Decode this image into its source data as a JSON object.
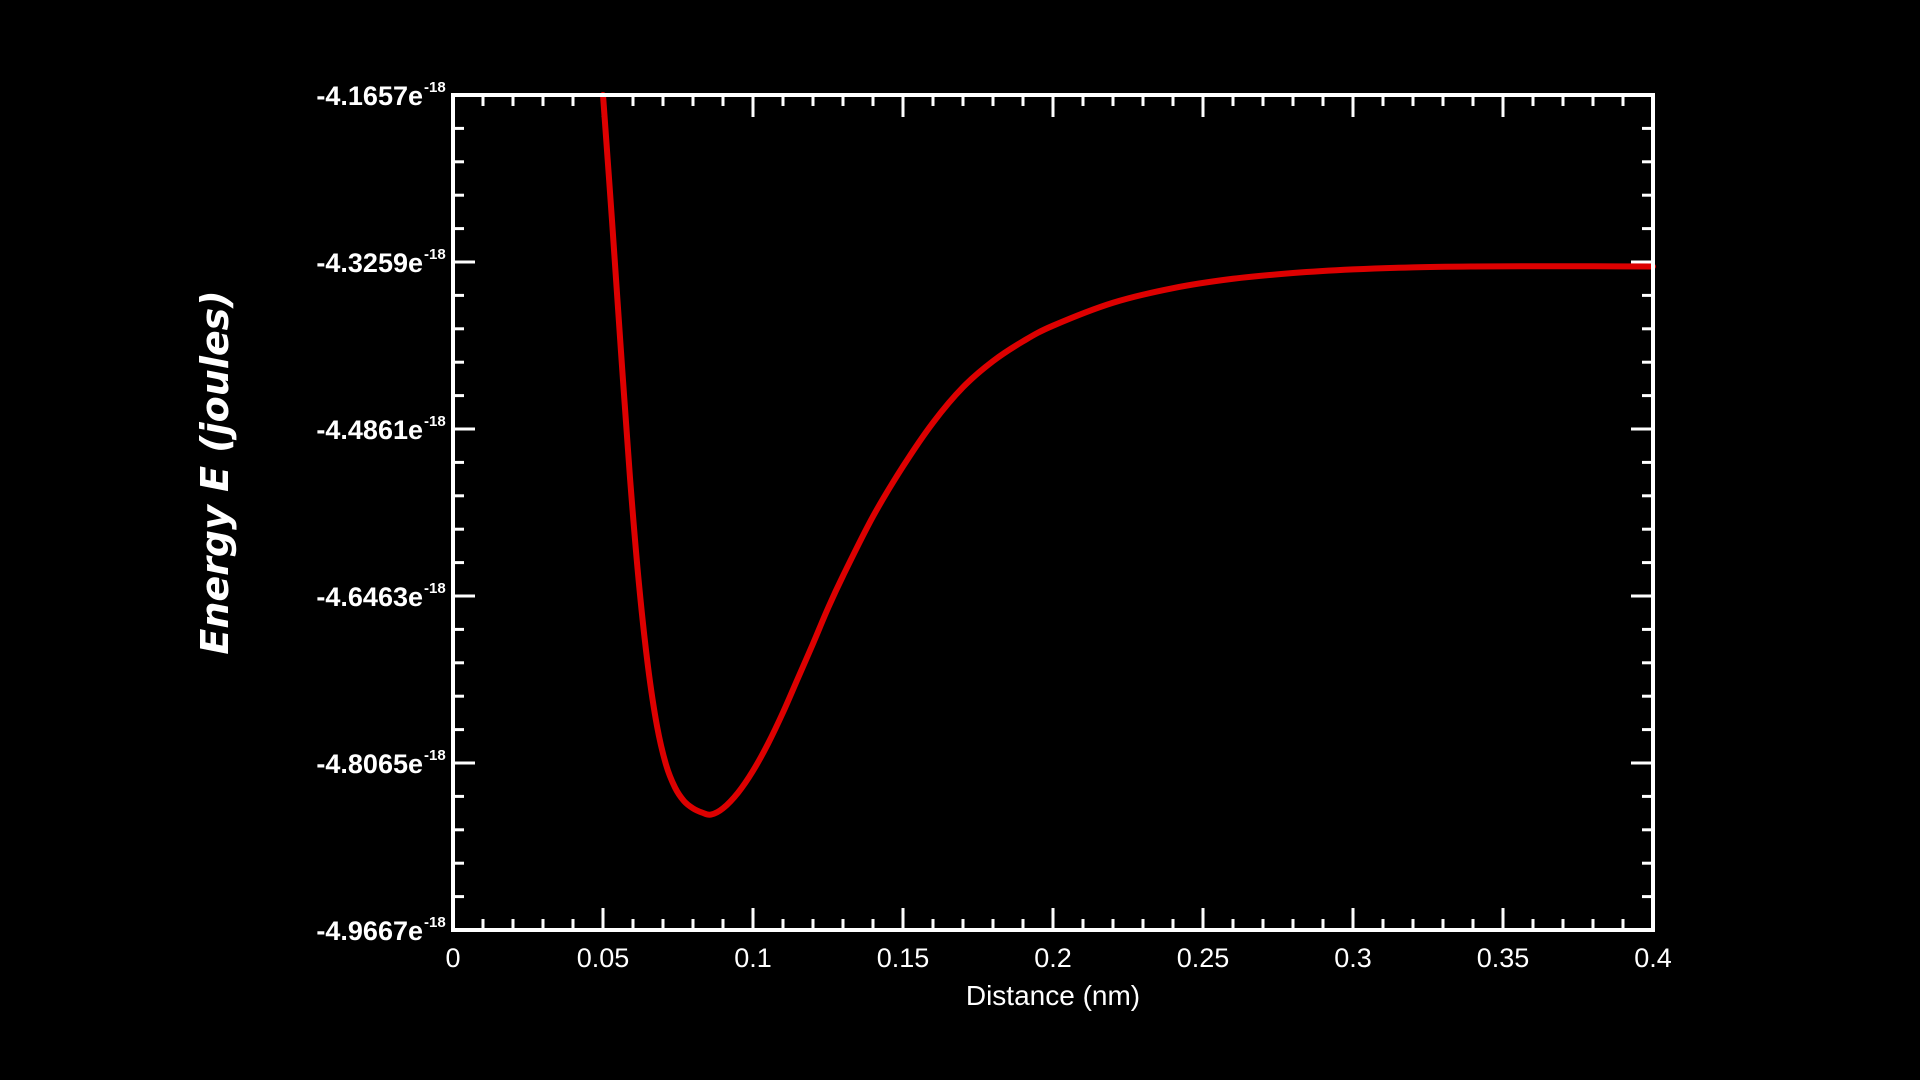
{
  "colors": {
    "background": "#000000",
    "axis": "#ffffff",
    "curve": "#dd0000"
  },
  "chart_data": {
    "type": "line",
    "title": "",
    "xlabel": "Distance (nm)",
    "ylabel": "Energy E (joules)",
    "xlim": [
      0,
      0.4
    ],
    "ylim": [
      -4.9667e-18,
      -4.1657e-18
    ],
    "grid": false,
    "legend": "none",
    "x_ticks": [
      0,
      0.05,
      0.1,
      0.15,
      0.2,
      0.25,
      0.3,
      0.35,
      0.4
    ],
    "x_tick_labels": [
      "0",
      "0.05",
      "0.1",
      "0.15",
      "0.2",
      "0.25",
      "0.3",
      "0.35",
      "0.4"
    ],
    "y_ticks": [
      -4.1657e-18,
      -4.3259e-18,
      -4.4861e-18,
      -4.6463e-18,
      -4.8065e-18,
      -4.9667e-18
    ],
    "y_tick_mantissas": [
      "-4.1657e",
      "-4.3259e",
      "-4.4861e",
      "-4.6463e",
      "-4.8065e",
      "-4.9667e"
    ],
    "y_tick_exponent": "-18",
    "series": [
      {
        "color": "#dd0000",
        "x": [
          0.05,
          0.053,
          0.056,
          0.059,
          0.062,
          0.065,
          0.068,
          0.071,
          0.074,
          0.077,
          0.08,
          0.083,
          0.086,
          0.09,
          0.095,
          0.1,
          0.105,
          0.11,
          0.115,
          0.12,
          0.125,
          0.13,
          0.14,
          0.15,
          0.16,
          0.17,
          0.18,
          0.19,
          0.2,
          0.22,
          0.24,
          0.26,
          0.28,
          0.3,
          0.32,
          0.34,
          0.36,
          0.38,
          0.4
        ],
        "y": [
          -4.1657e-18,
          -4.286e-18,
          -4.412e-18,
          -4.533e-18,
          -4.635e-18,
          -4.714e-18,
          -4.771e-18,
          -4.808e-18,
          -4.83e-18,
          -4.843e-18,
          -4.85e-18,
          -4.854e-18,
          -4.856e-18,
          -4.85e-18,
          -4.835e-18,
          -4.814e-18,
          -4.788e-18,
          -4.758e-18,
          -4.725e-18,
          -4.692e-18,
          -4.658e-18,
          -4.627e-18,
          -4.57e-18,
          -4.522e-18,
          -4.48e-18,
          -4.446e-18,
          -4.421e-18,
          -4.402e-18,
          -4.387e-18,
          -4.365e-18,
          -4.351e-18,
          -4.342e-18,
          -4.3365e-18,
          -4.333e-18,
          -4.331e-18,
          -4.3302e-18,
          -4.33e-18,
          -4.33e-18,
          -4.3302e-18
        ]
      }
    ]
  }
}
